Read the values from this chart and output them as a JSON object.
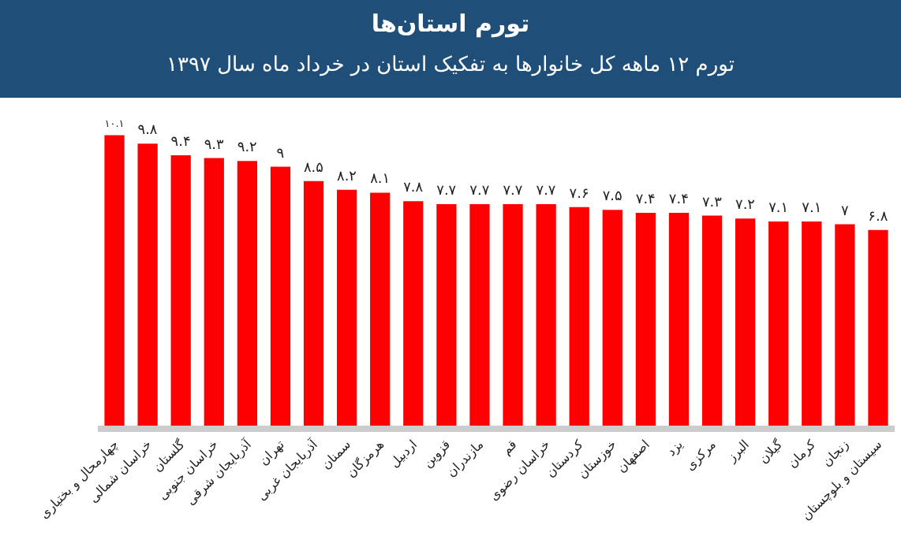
{
  "chart_data": {
    "type": "bar",
    "title": "تورم استان‌ها",
    "subtitle": "تورم ۱۲ ماهه کل خانوارها به تفکیک استان در خرداد ماه سال ۱۳۹۷",
    "categories": [
      "چهارمحال و بختیاری",
      "خراسان شمالی",
      "گلستان",
      "خراسان جنوبی",
      "آذربایجان شرقی",
      "تهران",
      "آذربایجان غربی",
      "سمنان",
      "هرمزگان",
      "اردبیل",
      "قزوین",
      "مازندران",
      "قم",
      "خراسان رضوی",
      "کردستان",
      "خوزستان",
      "اصفهان",
      "یزد",
      "مرکزی",
      "البرز",
      "گیلان",
      "کرمان",
      "زنجان",
      "سیستان و بلوچستان"
    ],
    "values": [
      10.1,
      9.8,
      9.4,
      9.3,
      9.2,
      9,
      8.5,
      8.2,
      8.1,
      7.8,
      7.7,
      7.7,
      7.7,
      7.7,
      7.6,
      7.5,
      7.4,
      7.4,
      7.3,
      7.2,
      7.1,
      7.1,
      7,
      6.8
    ],
    "value_labels": [
      "۱۰.۱",
      "۹.۸",
      "۹.۴",
      "۹.۳",
      "۹.۲",
      "۹",
      "۸.۵",
      "۸.۲",
      "۸.۱",
      "۷.۸",
      "۷.۷",
      "۷.۷",
      "۷.۷",
      "۷.۷",
      "۷.۶",
      "۷.۵",
      "۷.۴",
      "۷.۴",
      "۷.۳",
      "۷.۲",
      "۷.۱",
      "۷.۱",
      "۷",
      "۶.۸"
    ],
    "color": "#ff0000"
  }
}
